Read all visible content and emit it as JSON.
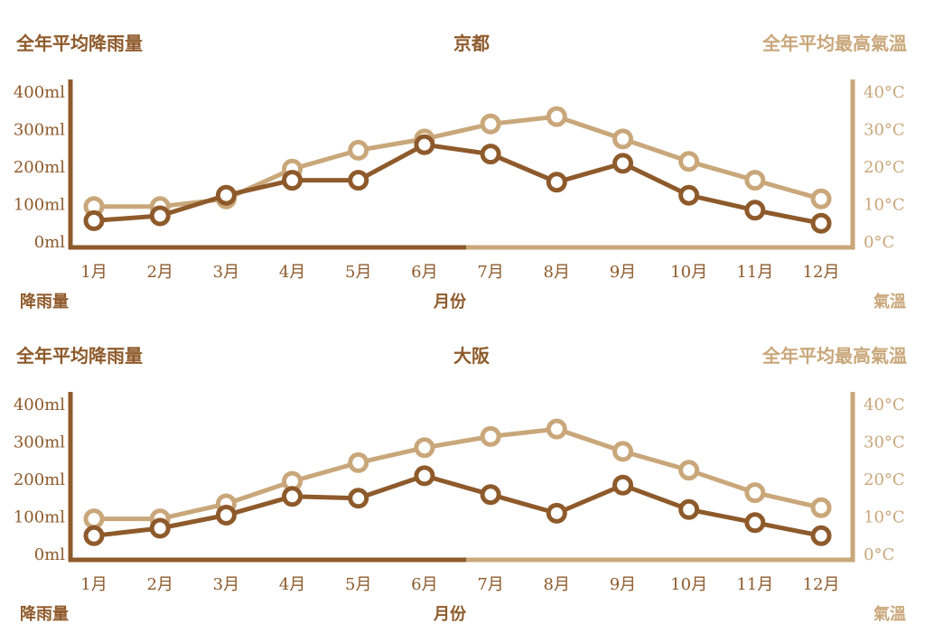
{
  "colors": {
    "rain": "#8e5a2b",
    "temp": "#c9a77a",
    "axis_left": "#8e5a2b",
    "axis_right": "#c9a77a"
  },
  "chart_data": [
    {
      "type": "line",
      "title": "京都",
      "left_axis_title": "全年平均降雨量",
      "right_axis_title": "全年平均最高氣溫",
      "left_sub_label": "降雨量",
      "x_sub_label": "月份",
      "right_sub_label": "氣溫",
      "categories": [
        "1月",
        "2月",
        "3月",
        "4月",
        "5月",
        "6月",
        "7月",
        "8月",
        "9月",
        "10月",
        "11月",
        "12月"
      ],
      "y_left": {
        "ticks": [
          "0ml",
          "100ml",
          "200ml",
          "300ml",
          "400ml"
        ],
        "range": [
          0,
          400
        ]
      },
      "y_right": {
        "ticks": [
          "0°C",
          "10°C",
          "20°C",
          "30°C",
          "40°C"
        ],
        "range": [
          0,
          40
        ]
      },
      "series": [
        {
          "axis": "left",
          "values": [
            52,
            65,
            120,
            160,
            160,
            255,
            230,
            155,
            205,
            120,
            80,
            45
          ]
        },
        {
          "axis": "right",
          "values": [
            9,
            9,
            11,
            19,
            24,
            27,
            31,
            33,
            27,
            21,
            16,
            11
          ]
        }
      ]
    },
    {
      "type": "line",
      "title": "大阪",
      "left_axis_title": "全年平均降雨量",
      "right_axis_title": "全年平均最高氣溫",
      "left_sub_label": "降雨量",
      "x_sub_label": "月份",
      "right_sub_label": "氣溫",
      "categories": [
        "1月",
        "2月",
        "3月",
        "4月",
        "5月",
        "6月",
        "7月",
        "8月",
        "9月",
        "10月",
        "11月",
        "12月"
      ],
      "y_left": {
        "ticks": [
          "0ml",
          "100ml",
          "200ml",
          "300ml",
          "400ml"
        ],
        "range": [
          0,
          400
        ]
      },
      "y_right": {
        "ticks": [
          "0°C",
          "10°C",
          "20°C",
          "30°C",
          "40°C"
        ],
        "range": [
          0,
          40
        ]
      },
      "series": [
        {
          "axis": "left",
          "values": [
            45,
            65,
            100,
            150,
            145,
            205,
            155,
            105,
            180,
            115,
            80,
            45
          ]
        },
        {
          "axis": "right",
          "values": [
            9,
            9,
            13,
            19,
            24,
            28,
            31,
            33,
            27,
            22,
            16,
            12
          ]
        }
      ]
    }
  ]
}
